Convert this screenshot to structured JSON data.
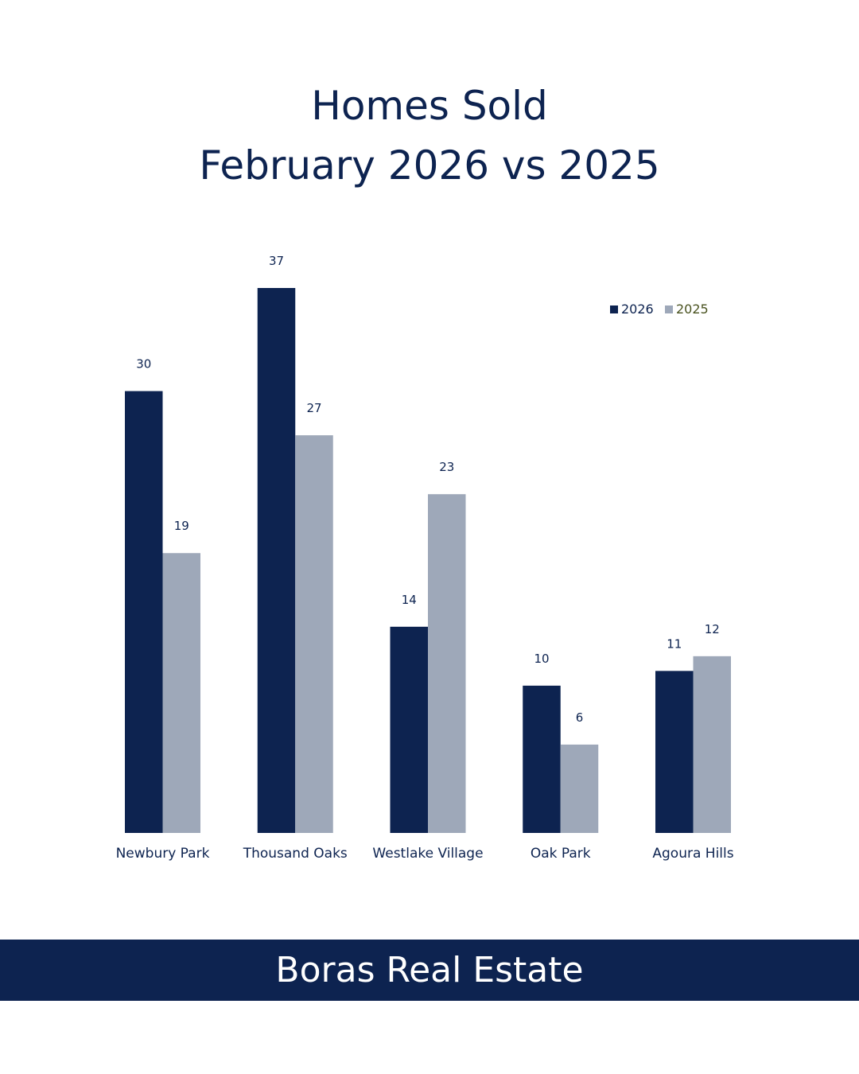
{
  "title_line1": "Homes Sold",
  "title_line2": "February 2026 vs 2025",
  "footer": {
    "brand": "Boras Real Estate"
  },
  "colors": {
    "navy": "#0d2350",
    "gray": "#9ea8b9",
    "label": "#0d2350",
    "legend_2025_text": "#4a5320",
    "background": "#ffffff"
  },
  "chart_data": {
    "type": "bar",
    "title": "Homes Sold February 2026 vs 2025",
    "xlabel": "",
    "ylabel": "",
    "categories": [
      "Newbury Park",
      "Thousand Oaks",
      "Westlake Village",
      "Oak Park",
      "Agoura Hills"
    ],
    "series": [
      {
        "name": "2026",
        "color": "#0d2350",
        "values": [
          30,
          37,
          14,
          10,
          11
        ]
      },
      {
        "name": "2025",
        "color": "#9ea8b9",
        "values": [
          19,
          27,
          23,
          6,
          12
        ]
      }
    ],
    "ylim": [
      0,
      37
    ],
    "grid": false,
    "legend": "top-right",
    "data_labels": true
  }
}
